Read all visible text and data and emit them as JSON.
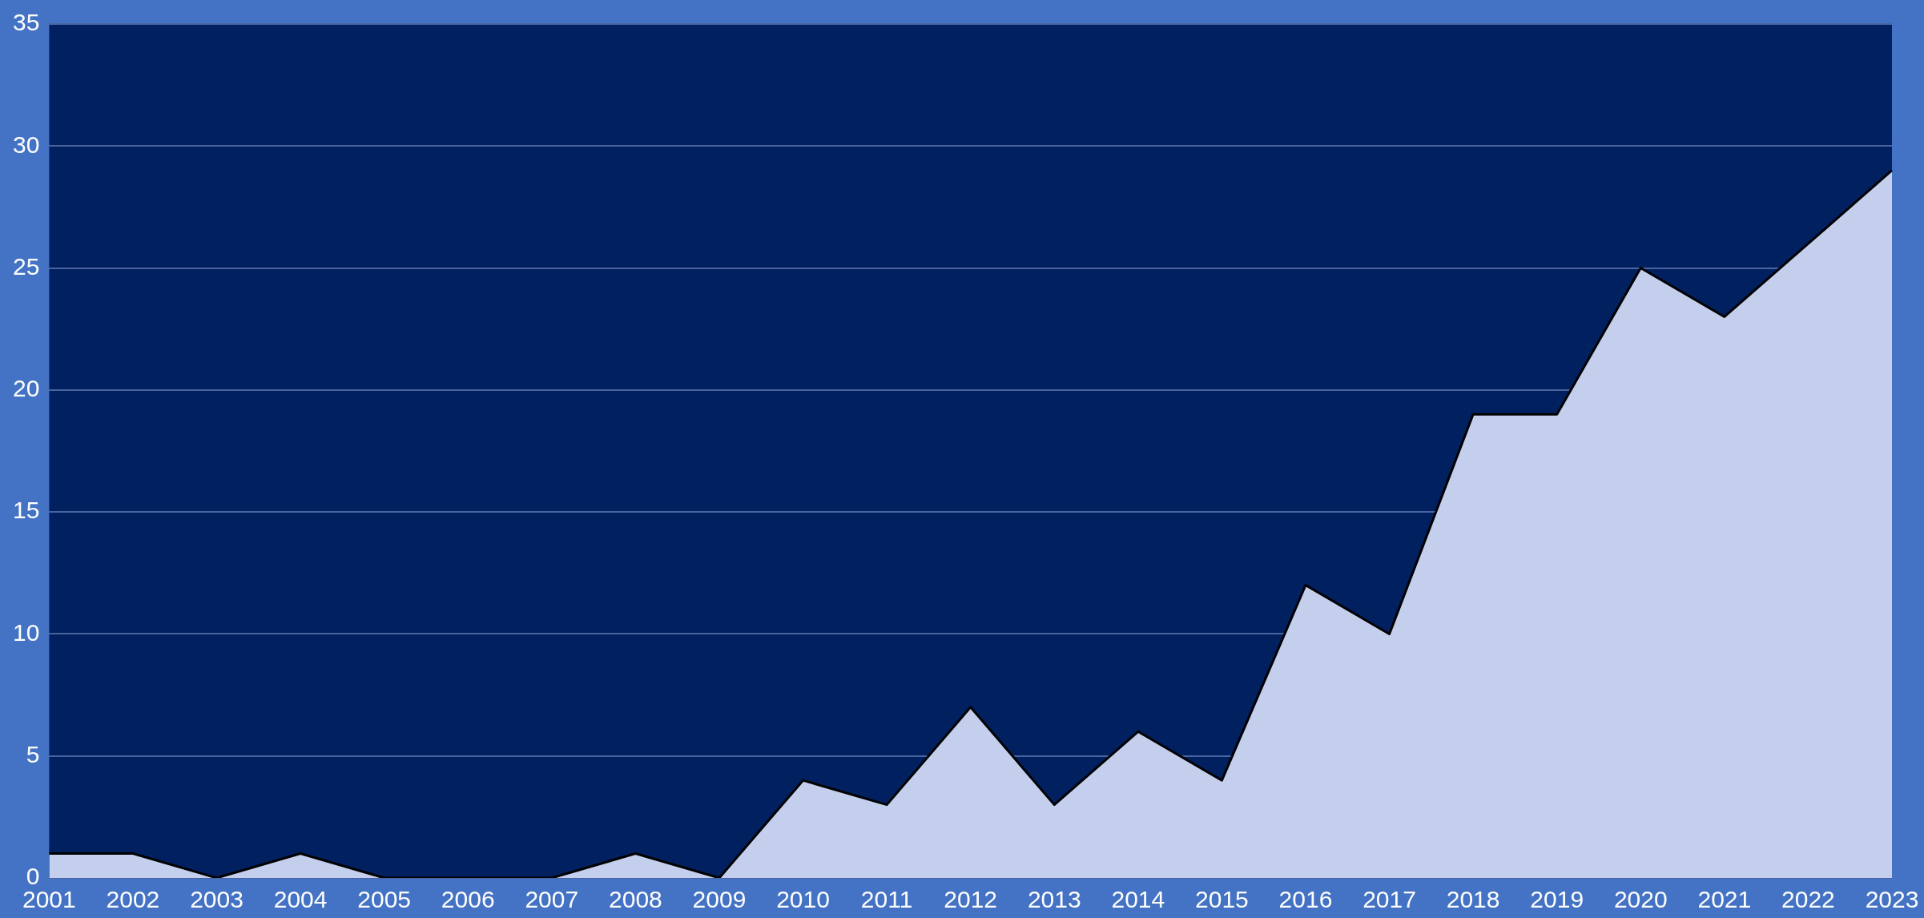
{
  "chart_data": {
    "type": "area",
    "categories": [
      "2001",
      "2002",
      "2003",
      "2004",
      "2005",
      "2006",
      "2007",
      "2008",
      "2009",
      "2010",
      "2011",
      "2012",
      "2013",
      "2014",
      "2015",
      "2016",
      "2017",
      "2018",
      "2019",
      "2020",
      "2021",
      "2022",
      "2023"
    ],
    "series": [
      {
        "color": "#c3cfec",
        "values": [
          1,
          1,
          0,
          1,
          0,
          0,
          0,
          1,
          0,
          4,
          3,
          7,
          3,
          6,
          4,
          12,
          10,
          19,
          19,
          25,
          23,
          26,
          29
        ]
      }
    ],
    "ylim": [
      0,
      35
    ],
    "yticks": [
      0,
      5,
      10,
      15,
      20,
      25,
      30,
      35
    ],
    "grid": "y",
    "legend": false,
    "marker": "none"
  }
}
